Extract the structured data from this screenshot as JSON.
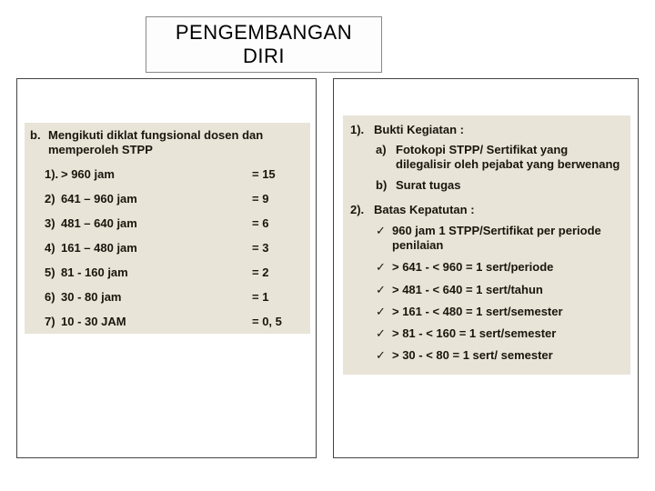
{
  "title": "PENGEMBANGAN DIRI",
  "colors": {
    "panel_bg": "#e9e4d8",
    "text": "#1a160d",
    "frame_border": "#444444",
    "title_border": "#888888",
    "page_bg": "#ffffff"
  },
  "left": {
    "marker": "b.",
    "heading": "Mengikuti diklat fungsional dosen dan memperoleh STPP",
    "rows": [
      {
        "num": "1).",
        "label": "> 960 jam",
        "val": "=  15"
      },
      {
        "num": "2)",
        "label": "641 – 960 jam",
        "val": "=   9"
      },
      {
        "num": "3)",
        "label": "481 – 640 jam",
        "val": "=   6"
      },
      {
        "num": "4)",
        "label": "161 – 480 jam",
        "val": "=   3"
      },
      {
        "num": "5)",
        "label": "  81 -  160 jam",
        "val": "=   2"
      },
      {
        "num": "6)",
        "label": "30  -   80 jam",
        "val": "=   1"
      },
      {
        "num": "7)",
        "label": "10  -  30 JAM",
        "val": "= 0, 5"
      }
    ]
  },
  "right": {
    "section1": {
      "num": "1).",
      "title": "Bukti Kegiatan :",
      "items": [
        {
          "m": "a)",
          "text": "Fotokopi STPP/ Sertifikat yang dilegalisir   oleh pejabat yang berwenang"
        },
        {
          "m": "b)",
          "text": "Surat tugas"
        }
      ]
    },
    "section2": {
      "num": "2).",
      "title": "Batas Kepatutan :",
      "items": [
        {
          "text": " 960 jam 1   STPP/Sertifikat per periode penilaian"
        },
        {
          "text": "> 641 - < 960 = 1 sert/periode"
        },
        {
          "text": "> 481 - < 640 = 1 sert/tahun"
        },
        {
          "text": "> 161 - < 480 = 1 sert/semester"
        },
        {
          "text": ">  81 - < 160 = 1 sert/semester"
        },
        {
          "text": ">  30  - < 80  = 1 sert/ semester"
        }
      ]
    }
  }
}
